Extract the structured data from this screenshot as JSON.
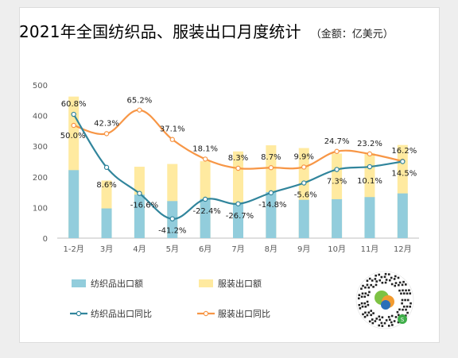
{
  "title": "2021年全国纺织品、服装出口月度统计",
  "unit": "（金额：亿美元）",
  "colors": {
    "textile_bar": "#92cddc",
    "apparel_bar": "#ffeaa0",
    "textile_line": "#31859c",
    "apparel_line": "#f79646"
  },
  "qr_icon": "mini-program-qr-code-icon",
  "chart_data": {
    "type": "bar",
    "categories": [
      "1-2月",
      "3月",
      "4月",
      "5月",
      "6月",
      "7月",
      "8月",
      "9月",
      "10月",
      "11月",
      "12月"
    ],
    "ylim": [
      0,
      500
    ],
    "yticks": [
      0,
      100,
      200,
      300,
      400,
      500
    ],
    "series": [
      {
        "name": "纺织品出口额",
        "kind": "bar",
        "values": [
          222,
          97,
          142,
          121,
          128,
          112,
          150,
          125,
          127,
          134,
          146
        ]
      },
      {
        "name": "服装出口额",
        "kind": "bar",
        "values": [
          462,
          188,
          233,
          242,
          251,
          283,
          303,
          294,
          276,
          277,
          304
        ]
      },
      {
        "name": "纺织品出口同比",
        "kind": "line",
        "values": [
          404,
          231,
          146,
          63,
          127,
          112,
          148,
          180,
          224,
          233,
          250
        ],
        "labels": [
          "60.8%",
          "8.6%",
          "-16.6%",
          "-41.2%",
          "-22.4%",
          "-26.7%",
          "-14.8%",
          "-5.6%",
          "7.3%",
          "10.1%",
          "14.5%"
        ]
      },
      {
        "name": "服装出口同比",
        "kind": "line",
        "values": [
          368,
          341,
          418,
          322,
          258,
          228,
          230,
          232,
          283,
          275,
          251
        ],
        "labels": [
          "50.0%",
          "42.3%",
          "65.2%",
          "37.1%",
          "18.1%",
          "8.3%",
          "8.7%",
          "9.9%",
          "24.7%",
          "23.2%",
          "16.2%"
        ]
      }
    ],
    "legend": [
      "纺织品出口额",
      "服装出口额",
      "纺织品出口同比",
      "服装出口同比"
    ],
    "legend_position": "bottom-left",
    "grid": false
  }
}
